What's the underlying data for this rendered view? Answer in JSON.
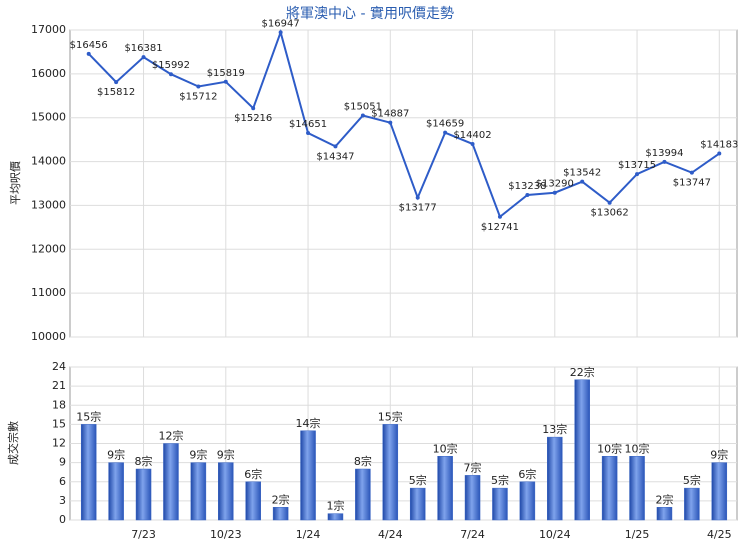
{
  "chart_data": [
    {
      "type": "line",
      "title": "將軍澳中心 - 實用呎價走勢",
      "y_label": "平均呎價",
      "color": "#2e5cc8",
      "values": [
        16456,
        15812,
        16381,
        15992,
        15712,
        15819,
        15216,
        16947,
        14651,
        14347,
        15051,
        14887,
        13177,
        14659,
        14402,
        12741,
        13238,
        13290,
        13542,
        13062,
        13715,
        13994,
        13747,
        14183
      ],
      "value_labels": [
        "$16456",
        "$15812",
        "$16381",
        "$15992",
        "$15712",
        "$15819",
        "$15216",
        "$16947",
        "$14651",
        "$14347",
        "$15051",
        "$14887",
        "$13177",
        "$14659",
        "$14402",
        "$12741",
        "$13238",
        "$13290",
        "$13542",
        "$13062",
        "$13715",
        "$13994",
        "$13747",
        "$14183"
      ],
      "ylim": [
        10000,
        17000
      ],
      "yticks": [
        10000,
        11000,
        12000,
        13000,
        14000,
        15000,
        16000,
        17000
      ],
      "grid": true
    },
    {
      "type": "bar",
      "y_label": "成交宗數",
      "color": "#3a66c4",
      "categories": [
        null,
        null,
        "7/23",
        null,
        null,
        "10/23",
        null,
        null,
        "1/24",
        null,
        null,
        "4/24",
        null,
        null,
        "7/24",
        null,
        null,
        "10/24",
        null,
        null,
        "1/25",
        null,
        null,
        "4/25"
      ],
      "values": [
        15,
        9,
        8,
        12,
        9,
        9,
        6,
        2,
        14,
        1,
        8,
        15,
        5,
        10,
        7,
        5,
        6,
        13,
        22,
        10,
        10,
        2,
        5,
        9
      ],
      "value_labels": [
        "15宗",
        "9宗",
        "8宗",
        "12宗",
        "9宗",
        "9宗",
        "6宗",
        "2宗",
        "14宗",
        "1宗",
        "8宗",
        "15宗",
        "5宗",
        "10宗",
        "7宗",
        "5宗",
        "6宗",
        "13宗",
        "22宗",
        "10宗",
        "10宗",
        "2宗",
        "5宗",
        "9宗"
      ],
      "ylim": [
        0,
        24
      ],
      "yticks": [
        0,
        3,
        6,
        9,
        12,
        15,
        18,
        21,
        24
      ],
      "grid": true
    }
  ]
}
